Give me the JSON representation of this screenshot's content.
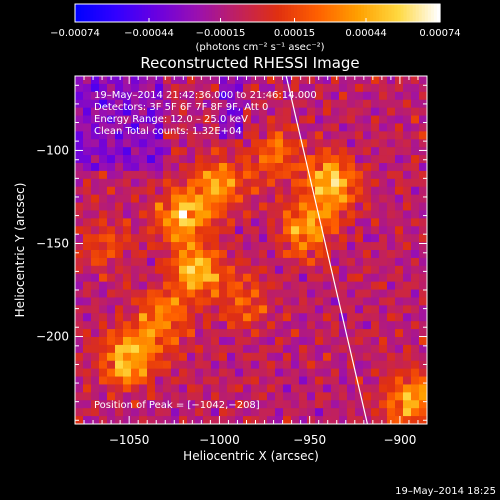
{
  "chart_data": {
    "type": "heatmap",
    "title": "Reconstructed RHESSI Image",
    "xlabel": "Heliocentric X (arcsec)",
    "ylabel": "Heliocentric Y (arcsec)",
    "xlim": [
      -1080,
      -885
    ],
    "ylim": [
      -247,
      -60
    ],
    "xticks": [
      -1050,
      -1000,
      -950,
      -900
    ],
    "yticks": [
      -100,
      -150,
      -200
    ],
    "xtick_labels": [
      "−1050",
      "−1000",
      "−950",
      "−900"
    ],
    "ytick_labels": [
      "−100",
      "−150",
      "−200"
    ],
    "annotations": [
      "19–May–2014 21:42:36.000 to 21:46:14.000",
      "Detectors: 3F 5F 6F 7F 8F 9F, Att 0",
      "Energy Range: 12.0 – 25.0 keV",
      "Clean     Total counts: 1.32E+04"
    ],
    "peak_text": "Position of Peak = [−1042,−208]",
    "peak": [
      -1042,
      -208
    ],
    "colorbar": {
      "range": [
        -0.00074,
        0.00074
      ],
      "tick_values": [
        -0.00074,
        -0.00044,
        -0.00015,
        0.00015,
        0.00044,
        0.00074
      ],
      "tick_labels": [
        "−0.00074",
        "−0.00044",
        "−0.00015",
        "0.00015",
        "0.00044",
        "0.00074"
      ],
      "unit_label": "(photons cm⁻² s⁻¹ asec⁻²)",
      "colormap": [
        "#0000ff",
        "#3300ff",
        "#6a00e0",
        "#9a10b0",
        "#c02060",
        "#e03010",
        "#ff6000",
        "#ffa000",
        "#ffd840",
        "#ffffff"
      ]
    },
    "limb_line": [
      [
        -963,
        -60
      ],
      [
        -918,
        -247
      ]
    ],
    "bright_regions": [
      {
        "x": -1020,
        "y": -135,
        "value": 0.00062
      },
      {
        "x": -1012,
        "y": -165,
        "value": 0.00058
      },
      {
        "x": -1000,
        "y": -118,
        "value": 0.00048
      },
      {
        "x": -1050,
        "y": -212,
        "value": 0.00066
      },
      {
        "x": -1032,
        "y": -190,
        "value": 0.0005
      },
      {
        "x": -938,
        "y": -118,
        "value": 0.00068
      },
      {
        "x": -952,
        "y": -142,
        "value": 0.00052
      },
      {
        "x": -895,
        "y": -235,
        "value": 0.00056
      },
      {
        "x": -968,
        "y": -102,
        "value": 0.00036
      },
      {
        "x": -985,
        "y": -180,
        "value": 0.00032
      },
      {
        "x": -1062,
        "y": -150,
        "value": 0.00022
      }
    ],
    "grid": false,
    "legend": "none"
  },
  "footer": {
    "date": "19–May–2014 18:25"
  }
}
